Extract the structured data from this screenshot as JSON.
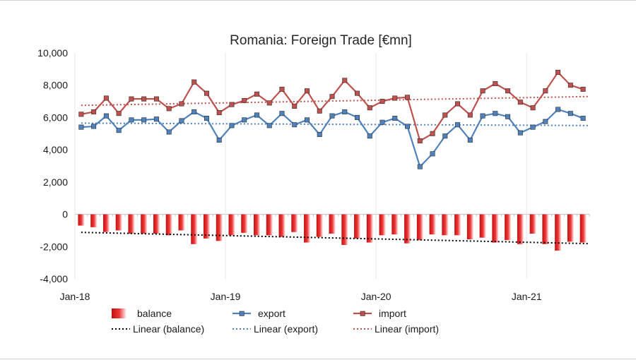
{
  "chart_data": {
    "type": "bar+line",
    "title": "Romania: Foreign Trade [€mn]",
    "xlabel": "",
    "ylabel": "",
    "ylim": [
      -4000,
      10000
    ],
    "yticks": [
      -4000,
      -2000,
      0,
      2000,
      4000,
      6000,
      8000,
      10000
    ],
    "ytick_labels": [
      "-4,000",
      "-2,000",
      "0",
      "2,000",
      "4,000",
      "6,000",
      "8,000",
      "10,000"
    ],
    "xtick_labels": [
      "Jan-18",
      "Jan-19",
      "Jan-20",
      "Jan-21"
    ],
    "x": [
      "Jan-18",
      "Feb-18",
      "Mar-18",
      "Apr-18",
      "May-18",
      "Jun-18",
      "Jul-18",
      "Aug-18",
      "Sep-18",
      "Oct-18",
      "Nov-18",
      "Dec-18",
      "Jan-19",
      "Feb-19",
      "Mar-19",
      "Apr-19",
      "May-19",
      "Jun-19",
      "Jul-19",
      "Aug-19",
      "Sep-19",
      "Oct-19",
      "Nov-19",
      "Dec-19",
      "Jan-20",
      "Feb-20",
      "Mar-20",
      "Apr-20",
      "May-20",
      "Jun-20",
      "Jul-20",
      "Aug-20",
      "Sep-20",
      "Oct-20",
      "Nov-20",
      "Dec-20",
      "Jan-21",
      "Feb-21",
      "Mar-21",
      "Apr-21",
      "May-21"
    ],
    "grid": false,
    "legend_position": "bottom",
    "series": [
      {
        "name": "balance",
        "type": "bar",
        "color": "#e02020",
        "values": [
          -700,
          -800,
          -1100,
          -1000,
          -1200,
          -1200,
          -1200,
          -1300,
          -1000,
          -1850,
          -1500,
          -1650,
          -1300,
          -1150,
          -1300,
          -1300,
          -1400,
          -1100,
          -1750,
          -1400,
          -1200,
          -1900,
          -1500,
          -1750,
          -1300,
          -1250,
          -1800,
          -1600,
          -1250,
          -1300,
          -1300,
          -1550,
          -1450,
          -1750,
          -1600,
          -1850,
          -1200,
          -1850,
          -2250,
          -1700,
          -1750
        ]
      },
      {
        "name": "export",
        "type": "line",
        "color": "#4f81bd",
        "values": [
          5400,
          5450,
          6100,
          5200,
          5850,
          5850,
          5900,
          5100,
          5800,
          6350,
          5950,
          4600,
          5500,
          5850,
          6150,
          5500,
          6250,
          5550,
          5850,
          4950,
          6100,
          6350,
          6000,
          4850,
          5700,
          5950,
          5450,
          2950,
          3750,
          4850,
          5550,
          4600,
          6100,
          6250,
          6050,
          5050,
          5400,
          5750,
          6500,
          6250,
          5950
        ]
      },
      {
        "name": "import",
        "type": "line",
        "color": "#c0504d",
        "values": [
          6200,
          6350,
          7200,
          6250,
          7150,
          7150,
          7150,
          6550,
          6850,
          8200,
          7500,
          6300,
          6800,
          7050,
          7450,
          6900,
          7750,
          6700,
          7650,
          6400,
          7300,
          8300,
          7500,
          6600,
          7000,
          7200,
          7250,
          4550,
          5000,
          6150,
          6850,
          6150,
          7650,
          8100,
          7650,
          6950,
          6600,
          7650,
          8800,
          8000,
          7750
        ]
      }
    ],
    "trendlines": [
      {
        "name": "Linear (balance)",
        "color": "#000000",
        "from": -1120,
        "to": -1820
      },
      {
        "name": "Linear (export)",
        "color": "#4f81bd",
        "from": 5650,
        "to": 5500
      },
      {
        "name": "Linear (import)",
        "color": "#c0504d",
        "from": 6750,
        "to": 7300
      }
    ]
  }
}
